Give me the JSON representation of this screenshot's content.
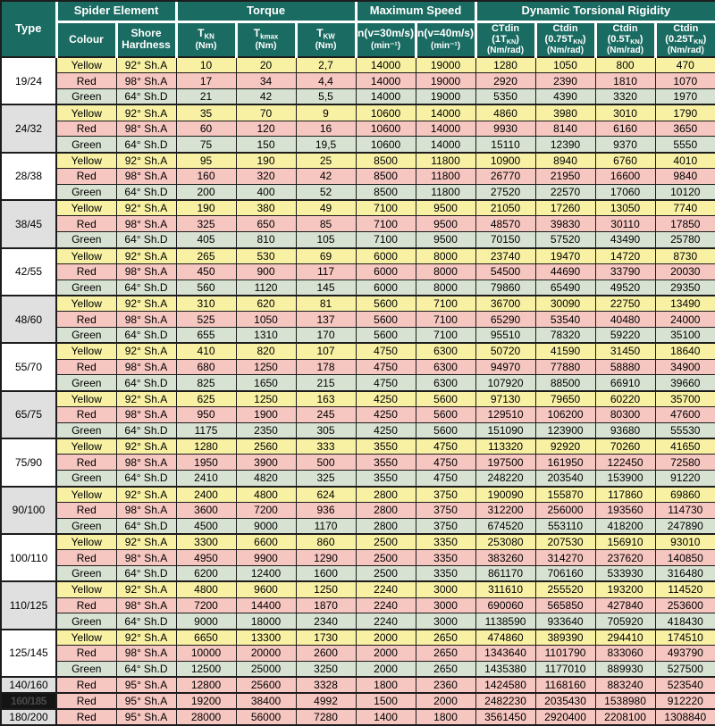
{
  "colors": {
    "header": "#1a6b62",
    "yellow": "#f8f1a4",
    "red": "#f6c6c0",
    "green": "#d8e2d2",
    "type_white": "#ffffff",
    "type_gray": "#e0e0e0",
    "type_black_bg": "#141414",
    "type_black_text": "#4a4a4a",
    "border_dark": "#1c1c1c"
  },
  "header": {
    "type_label": "Type",
    "spider_group": "Spider Element",
    "torque_group": "Torque",
    "speed_group": "Maximum Speed",
    "rigidity_group": "Dynamic Torsional Rigidity",
    "colour_label": "Colour",
    "shore_label": "Shore Hardness",
    "torque_cols": [
      {
        "sym": "T",
        "sub": "KN",
        "unit": "(Nm)"
      },
      {
        "sym": "T",
        "sub": "kmax",
        "unit": "(Nm)"
      },
      {
        "sym": "T",
        "sub": "KW",
        "unit": "(Nm)"
      }
    ],
    "speed_cols": [
      {
        "line1": "n(v=30m/s)",
        "line2": "(min⁻¹)"
      },
      {
        "line1": "n(v=40m/s)",
        "line2": "(min⁻¹)"
      }
    ],
    "rigidity_cols": [
      {
        "name": "CTdin",
        "load_pre": "(1T",
        "load_sub": "KN",
        "load_post": ")",
        "unit": "(Nm/rad)"
      },
      {
        "name": "Ctdin",
        "load_pre": "(0.75T",
        "load_sub": "KN",
        "load_post": ")",
        "unit": "(Nm/rad)"
      },
      {
        "name": "Ctdin",
        "load_pre": "(0.5T",
        "load_sub": "KN",
        "load_post": ")",
        "unit": "(Nm/rad)"
      },
      {
        "name": "Ctdin",
        "load_pre": "(0.25T",
        "load_sub": "KN",
        "load_post": ")",
        "unit": "(Nm/rad)"
      }
    ]
  },
  "blocks": [
    {
      "type": "19/24",
      "variant": "white",
      "rows": [
        {
          "colour": "Yellow",
          "hardness": "92° Sh.A",
          "values": [
            "10",
            "20",
            "2,7",
            "14000",
            "19000",
            "1280",
            "1050",
            "800",
            "470"
          ]
        },
        {
          "colour": "Red",
          "hardness": "98° Sh.A",
          "values": [
            "17",
            "34",
            "4,4",
            "14000",
            "19000",
            "2920",
            "2390",
            "1810",
            "1070"
          ]
        },
        {
          "colour": "Green",
          "hardness": "64° Sh.D",
          "values": [
            "21",
            "42",
            "5,5",
            "14000",
            "19000",
            "5350",
            "4390",
            "3320",
            "1970"
          ]
        }
      ]
    },
    {
      "type": "24/32",
      "variant": "gray",
      "rows": [
        {
          "colour": "Yellow",
          "hardness": "92° Sh.A",
          "values": [
            "35",
            "70",
            "9",
            "10600",
            "14000",
            "4860",
            "3980",
            "3010",
            "1790"
          ]
        },
        {
          "colour": "Red",
          "hardness": "98° Sh.A",
          "values": [
            "60",
            "120",
            "16",
            "10600",
            "14000",
            "9930",
            "8140",
            "6160",
            "3650"
          ]
        },
        {
          "colour": "Green",
          "hardness": "64° Sh.D",
          "values": [
            "75",
            "150",
            "19,5",
            "10600",
            "14000",
            "15110",
            "12390",
            "9370",
            "5550"
          ]
        }
      ]
    },
    {
      "type": "28/38",
      "variant": "white",
      "rows": [
        {
          "colour": "Yellow",
          "hardness": "92° Sh.A",
          "values": [
            "95",
            "190",
            "25",
            "8500",
            "11800",
            "10900",
            "8940",
            "6760",
            "4010"
          ]
        },
        {
          "colour": "Red",
          "hardness": "98° Sh.A",
          "values": [
            "160",
            "320",
            "42",
            "8500",
            "11800",
            "26770",
            "21950",
            "16600",
            "9840"
          ]
        },
        {
          "colour": "Green",
          "hardness": "64° Sh.D",
          "values": [
            "200",
            "400",
            "52",
            "8500",
            "11800",
            "27520",
            "22570",
            "17060",
            "10120"
          ]
        }
      ]
    },
    {
      "type": "38/45",
      "variant": "gray",
      "rows": [
        {
          "colour": "Yellow",
          "hardness": "92° Sh.A",
          "values": [
            "190",
            "380",
            "49",
            "7100",
            "9500",
            "21050",
            "17260",
            "13050",
            "7740"
          ]
        },
        {
          "colour": "Red",
          "hardness": "98° Sh.A",
          "values": [
            "325",
            "650",
            "85",
            "7100",
            "9500",
            "48570",
            "39830",
            "30110",
            "17850"
          ]
        },
        {
          "colour": "Green",
          "hardness": "64° Sh.D",
          "values": [
            "405",
            "810",
            "105",
            "7100",
            "9500",
            "70150",
            "57520",
            "43490",
            "25780"
          ]
        }
      ]
    },
    {
      "type": "42/55",
      "variant": "white",
      "rows": [
        {
          "colour": "Yellow",
          "hardness": "92° Sh.A",
          "values": [
            "265",
            "530",
            "69",
            "6000",
            "8000",
            "23740",
            "19470",
            "14720",
            "8730"
          ]
        },
        {
          "colour": "Red",
          "hardness": "98° Sh.A",
          "values": [
            "450",
            "900",
            "117",
            "6000",
            "8000",
            "54500",
            "44690",
            "33790",
            "20030"
          ]
        },
        {
          "colour": "Green",
          "hardness": "64° Sh.D",
          "values": [
            "560",
            "1120",
            "145",
            "6000",
            "8000",
            "79860",
            "65490",
            "49520",
            "29350"
          ]
        }
      ]
    },
    {
      "type": "48/60",
      "variant": "gray",
      "rows": [
        {
          "colour": "Yellow",
          "hardness": "92° Sh.A",
          "values": [
            "310",
            "620",
            "81",
            "5600",
            "7100",
            "36700",
            "30090",
            "22750",
            "13490"
          ]
        },
        {
          "colour": "Red",
          "hardness": "98° Sh.A",
          "values": [
            "525",
            "1050",
            "137",
            "5600",
            "7100",
            "65290",
            "53540",
            "40480",
            "24000"
          ]
        },
        {
          "colour": "Green",
          "hardness": "64° Sh.D",
          "values": [
            "655",
            "1310",
            "170",
            "5600",
            "7100",
            "95510",
            "78320",
            "59220",
            "35100"
          ]
        }
      ]
    },
    {
      "type": "55/70",
      "variant": "white",
      "rows": [
        {
          "colour": "Yellow",
          "hardness": "92° Sh.A",
          "values": [
            "410",
            "820",
            "107",
            "4750",
            "6300",
            "50720",
            "41590",
            "31450",
            "18640"
          ]
        },
        {
          "colour": "Red",
          "hardness": "98° Sh.A",
          "values": [
            "680",
            "1250",
            "178",
            "4750",
            "6300",
            "94970",
            "77880",
            "58880",
            "34900"
          ]
        },
        {
          "colour": "Green",
          "hardness": "64° Sh.D",
          "values": [
            "825",
            "1650",
            "215",
            "4750",
            "6300",
            "107920",
            "88500",
            "66910",
            "39660"
          ]
        }
      ]
    },
    {
      "type": "65/75",
      "variant": "gray",
      "rows": [
        {
          "colour": "Yellow",
          "hardness": "92° Sh.A",
          "values": [
            "625",
            "1250",
            "163",
            "4250",
            "5600",
            "97130",
            "79650",
            "60220",
            "35700"
          ]
        },
        {
          "colour": "Red",
          "hardness": "98° Sh.A",
          "values": [
            "950",
            "1900",
            "245",
            "4250",
            "5600",
            "129510",
            "106200",
            "80300",
            "47600"
          ]
        },
        {
          "colour": "Green",
          "hardness": "64° Sh.D",
          "values": [
            "1175",
            "2350",
            "305",
            "4250",
            "5600",
            "151090",
            "123900",
            "93680",
            "55530"
          ]
        }
      ]
    },
    {
      "type": "75/90",
      "variant": "white",
      "rows": [
        {
          "colour": "Yellow",
          "hardness": "92° Sh.A",
          "values": [
            "1280",
            "2560",
            "333",
            "3550",
            "4750",
            "113320",
            "92920",
            "70260",
            "41650"
          ]
        },
        {
          "colour": "Red",
          "hardness": "98° Sh.A",
          "values": [
            "1950",
            "3900",
            "500",
            "3550",
            "4750",
            "197500",
            "161950",
            "122450",
            "72580"
          ]
        },
        {
          "colour": "Green",
          "hardness": "64° Sh.D",
          "values": [
            "2410",
            "4820",
            "325",
            "3550",
            "4750",
            "248220",
            "203540",
            "153900",
            "91220"
          ]
        }
      ]
    },
    {
      "type": "90/100",
      "variant": "gray",
      "rows": [
        {
          "colour": "Yellow",
          "hardness": "92° Sh.A",
          "values": [
            "2400",
            "4800",
            "624",
            "2800",
            "3750",
            "190090",
            "155870",
            "117860",
            "69860"
          ]
        },
        {
          "colour": "Red",
          "hardness": "98° Sh.A",
          "values": [
            "3600",
            "7200",
            "936",
            "2800",
            "3750",
            "312200",
            "256000",
            "193560",
            "114730"
          ]
        },
        {
          "colour": "Green",
          "hardness": "64° Sh.D",
          "values": [
            "4500",
            "9000",
            "1170",
            "2800",
            "3750",
            "674520",
            "553110",
            "418200",
            "247890"
          ]
        }
      ]
    },
    {
      "type": "100/110",
      "variant": "white",
      "rows": [
        {
          "colour": "Yellow",
          "hardness": "92° Sh.A",
          "values": [
            "3300",
            "6600",
            "860",
            "2500",
            "3350",
            "253080",
            "207530",
            "156910",
            "93010"
          ]
        },
        {
          "colour": "Red",
          "hardness": "98° Sh.A",
          "values": [
            "4950",
            "9900",
            "1290",
            "2500",
            "3350",
            "383260",
            "314270",
            "237620",
            "140850"
          ]
        },
        {
          "colour": "Green",
          "hardness": "64° Sh.D",
          "values": [
            "6200",
            "12400",
            "1600",
            "2500",
            "3350",
            "861170",
            "706160",
            "533930",
            "316480"
          ]
        }
      ]
    },
    {
      "type": "110/125",
      "variant": "gray",
      "rows": [
        {
          "colour": "Yellow",
          "hardness": "92° Sh.A",
          "values": [
            "4800",
            "9600",
            "1250",
            "2240",
            "3000",
            "311610",
            "255520",
            "193200",
            "114520"
          ]
        },
        {
          "colour": "Red",
          "hardness": "98° Sh.A",
          "values": [
            "7200",
            "14400",
            "1870",
            "2240",
            "3000",
            "690060",
            "565850",
            "427840",
            "253600"
          ]
        },
        {
          "colour": "Green",
          "hardness": "64° Sh.D",
          "values": [
            "9000",
            "18000",
            "2340",
            "2240",
            "3000",
            "1138590",
            "933640",
            "705920",
            "418430"
          ]
        }
      ]
    },
    {
      "type": "125/145",
      "variant": "white",
      "rows": [
        {
          "colour": "Yellow",
          "hardness": "92° Sh.A",
          "values": [
            "6650",
            "13300",
            "1730",
            "2000",
            "2650",
            "474860",
            "389390",
            "294410",
            "174510"
          ]
        },
        {
          "colour": "Red",
          "hardness": "98° Sh.A",
          "values": [
            "10000",
            "20000",
            "2600",
            "2000",
            "2650",
            "1343640",
            "1101790",
            "833060",
            "493790"
          ]
        },
        {
          "colour": "Green",
          "hardness": "64° Sh.D",
          "values": [
            "12500",
            "25000",
            "3250",
            "2000",
            "2650",
            "1435380",
            "1177010",
            "889930",
            "527500"
          ]
        }
      ]
    },
    {
      "type": "140/160",
      "variant": "gray",
      "rows": [
        {
          "colour": "Red",
          "hardness": "95° Sh.A",
          "values": [
            "12800",
            "25600",
            "3328",
            "1800",
            "2360",
            "1424580",
            "1168160",
            "883240",
            "523540"
          ]
        }
      ]
    },
    {
      "type": "160/185",
      "variant": "black",
      "rows": [
        {
          "colour": "Red",
          "hardness": "95° Sh.A",
          "values": [
            "19200",
            "38400",
            "4992",
            "1500",
            "2000",
            "2482230",
            "2035430",
            "1538980",
            "912220"
          ]
        }
      ]
    },
    {
      "type": "180/200",
      "variant": "gray",
      "rows": [
        {
          "colour": "Red",
          "hardness": "95° Sh.A",
          "values": [
            "28000",
            "56000",
            "7280",
            "1400",
            "1800",
            "3561450",
            "2920400",
            "2208100",
            "1308840"
          ]
        }
      ]
    }
  ]
}
